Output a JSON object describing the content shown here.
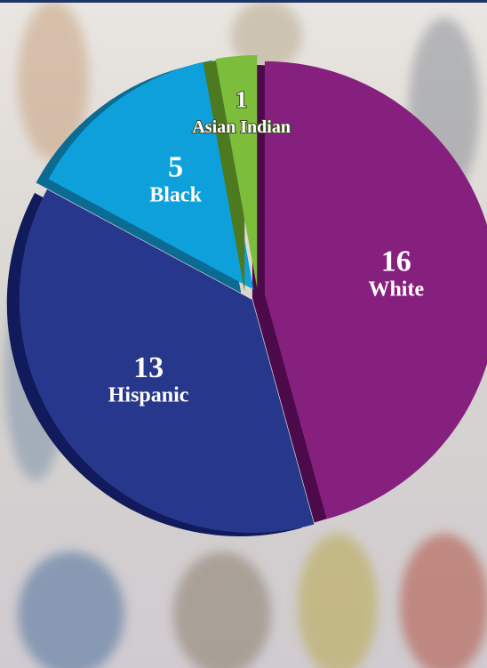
{
  "chart_data": {
    "type": "pie",
    "categories": [
      "White",
      "Hispanic",
      "Black",
      "Asian Indian"
    ],
    "values": [
      16,
      13,
      5,
      1
    ],
    "colors": [
      "#86207f",
      "#27388c",
      "#0da0db",
      "#7cbd3b"
    ],
    "side_colors": [
      "#4d0a4a",
      "#111a5a",
      "#0b6b92",
      "#4d7a20"
    ]
  }
}
